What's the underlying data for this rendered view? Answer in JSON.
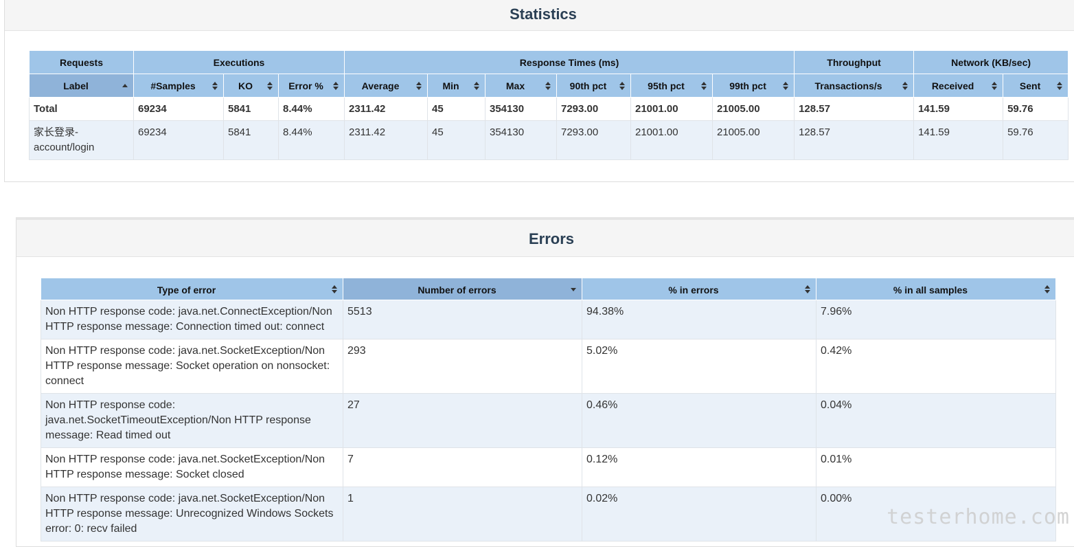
{
  "statistics": {
    "title": "Statistics",
    "group_headers": [
      "Requests",
      "Executions",
      "Response Times (ms)",
      "Throughput",
      "Network (KB/sec)"
    ],
    "columns": [
      "Label",
      "#Samples",
      "KO",
      "Error %",
      "Average",
      "Min",
      "Max",
      "90th pct",
      "95th pct",
      "99th pct",
      "Transactions/s",
      "Received",
      "Sent"
    ],
    "total_row": [
      "Total",
      "69234",
      "5841",
      "8.44%",
      "2311.42",
      "45",
      "354130",
      "7293.00",
      "21001.00",
      "21005.00",
      "128.57",
      "141.59",
      "59.76"
    ],
    "rows": [
      [
        "家长登录-account/login",
        "69234",
        "5841",
        "8.44%",
        "2311.42",
        "45",
        "354130",
        "7293.00",
        "21001.00",
        "21005.00",
        "128.57",
        "141.59",
        "59.76"
      ]
    ]
  },
  "errors": {
    "title": "Errors",
    "columns": [
      "Type of error",
      "Number of errors",
      "% in errors",
      "% in all samples"
    ],
    "rows": [
      [
        "Non HTTP response code: java.net.ConnectException/Non HTTP response message: Connection timed out: connect",
        "5513",
        "94.38%",
        "7.96%"
      ],
      [
        "Non HTTP response code: java.net.SocketException/Non HTTP response message: Socket operation on nonsocket: connect",
        "293",
        "5.02%",
        "0.42%"
      ],
      [
        "Non HTTP response code: java.net.SocketTimeoutException/Non HTTP response message: Read timed out",
        "27",
        "0.46%",
        "0.04%"
      ],
      [
        "Non HTTP response code: java.net.SocketException/Non HTTP response message: Socket closed",
        "7",
        "0.12%",
        "0.01%"
      ],
      [
        "Non HTTP response code: java.net.SocketException/Non HTTP response message: Unrecognized Windows Sockets error: 0: recv failed",
        "1",
        "0.02%",
        "0.00%"
      ]
    ]
  },
  "watermark": "testerhome.com",
  "colors": {
    "header_bg": "#9fc5e8",
    "odd_row_bg": "#eaf1f9",
    "title_color": "#2a3f54"
  },
  "icons": {
    "sort_both": "sort-both-icon",
    "sort_asc": "sort-asc-icon",
    "sort_desc": "sort-desc-icon"
  }
}
